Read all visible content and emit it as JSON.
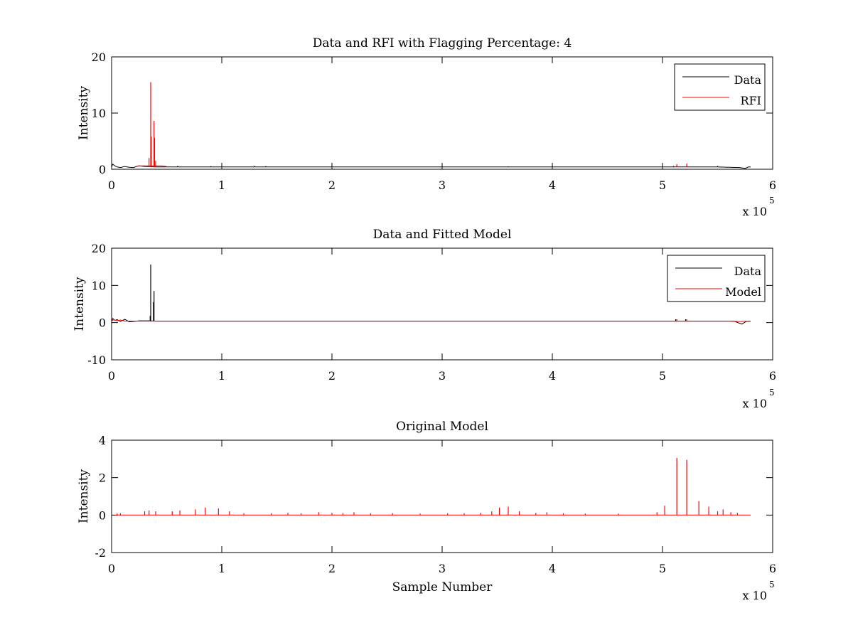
{
  "figure": {
    "background": "#ffffff"
  },
  "chart_data": [
    {
      "type": "line",
      "title": "Data and RFI with Flagging Percentage: 4",
      "xlabel": "",
      "ylabel": "Intensity",
      "xlim": [
        0,
        6
      ],
      "ylim": [
        0,
        20
      ],
      "xticks": [
        "0",
        "1",
        "2",
        "3",
        "4",
        "5",
        "6"
      ],
      "yticks": [
        "0",
        "10",
        "20"
      ],
      "x_exponent": {
        "base": "x 10",
        "power": "5"
      },
      "legend": {
        "placement": "top-right",
        "entries": [
          "Data",
          "RFI"
        ]
      },
      "series": [
        {
          "name": "Data",
          "color": "#000000",
          "baseline": 0.4,
          "x": [
            0.0,
            0.01,
            0.03,
            0.05,
            0.08,
            0.12,
            0.16,
            0.2,
            0.22,
            0.25,
            0.3,
            0.35,
            0.4,
            0.5,
            1.0,
            2.0,
            3.0,
            4.0,
            5.0,
            5.5,
            5.7,
            5.75,
            5.78,
            5.8
          ],
          "y": [
            0.4,
            0.9,
            0.6,
            0.4,
            0.3,
            0.5,
            0.35,
            0.3,
            0.45,
            0.6,
            0.5,
            0.45,
            0.42,
            0.4,
            0.4,
            0.4,
            0.4,
            0.4,
            0.4,
            0.4,
            0.3,
            0.15,
            0.4,
            0.4
          ],
          "spikes": [
            [
              0.6,
              0.6
            ],
            [
              0.9,
              0.55
            ],
            [
              1.3,
              0.6
            ],
            [
              1.4,
              0.55
            ],
            [
              3.6,
              0.5
            ],
            [
              5.1,
              0.55
            ],
            [
              5.5,
              0.6
            ]
          ]
        },
        {
          "name": "RFI",
          "color": "#ff0000",
          "baseline": 0.4,
          "x": [
            0.22,
            0.24,
            0.3,
            0.35,
            0.4,
            0.45,
            0.5
          ],
          "y": [
            0.4,
            0.6,
            0.6,
            0.6,
            0.6,
            0.6,
            0.5
          ],
          "spikes": [
            [
              0.34,
              2.0
            ],
            [
              0.355,
              15.5
            ],
            [
              0.36,
              5.8
            ],
            [
              0.385,
              8.6
            ],
            [
              0.39,
              5.6
            ],
            [
              0.4,
              1.5
            ],
            [
              5.13,
              0.9
            ],
            [
              5.22,
              1.0
            ]
          ]
        }
      ]
    },
    {
      "type": "line",
      "title": "Data and Fitted Model",
      "xlabel": "",
      "ylabel": "Intensity",
      "xlim": [
        0,
        6
      ],
      "ylim": [
        -10,
        20
      ],
      "xticks": [
        "0",
        "1",
        "2",
        "3",
        "4",
        "5",
        "6"
      ],
      "yticks": [
        "-10",
        "0",
        "10",
        "20"
      ],
      "x_exponent": {
        "base": "x 10",
        "power": "5"
      },
      "legend": {
        "placement": "top-right",
        "entries": [
          "Data",
          "Model"
        ]
      },
      "series": [
        {
          "name": "Data",
          "color": "#000000",
          "baseline": 0.4,
          "x": [
            0.0,
            0.01,
            0.03,
            0.05,
            0.08,
            0.12,
            0.16,
            0.2,
            0.25,
            0.3,
            0.34,
            0.4,
            1.0,
            3.0,
            5.0,
            5.5,
            5.65,
            5.72,
            5.76,
            5.8
          ],
          "y": [
            0.4,
            1.1,
            0.6,
            0.8,
            0.3,
            0.9,
            0.2,
            0.3,
            0.5,
            0.5,
            0.5,
            0.4,
            0.4,
            0.4,
            0.4,
            0.4,
            0.4,
            -0.4,
            0.3,
            0.4
          ],
          "spikes": [
            [
              0.35,
              1.8
            ],
            [
              0.355,
              15.6
            ],
            [
              0.38,
              5.5
            ],
            [
              0.385,
              8.5
            ],
            [
              5.12,
              0.9
            ],
            [
              5.21,
              0.9
            ]
          ]
        },
        {
          "name": "Model",
          "color": "#ff0000",
          "baseline": 0.4,
          "x": [
            0.0,
            0.02,
            0.05,
            0.08,
            0.12,
            0.2,
            0.3,
            1.0,
            3.0,
            5.0,
            5.6,
            5.7,
            5.8
          ],
          "y": [
            0.4,
            0.8,
            0.5,
            0.7,
            0.4,
            0.4,
            0.4,
            0.4,
            0.4,
            0.4,
            0.4,
            0.3,
            0.4
          ],
          "spikes": [
            [
              5.13,
              0.9
            ],
            [
              5.22,
              0.9
            ]
          ]
        }
      ]
    },
    {
      "type": "line",
      "title": "Original Model",
      "xlabel": "Sample Number",
      "ylabel": "Intensity",
      "xlim": [
        0,
        6
      ],
      "ylim": [
        -2,
        4
      ],
      "xticks": [
        "0",
        "1",
        "2",
        "3",
        "4",
        "5",
        "6"
      ],
      "yticks": [
        "-2",
        "0",
        "2",
        "4"
      ],
      "x_exponent": {
        "base": "x 10",
        "power": "5"
      },
      "legend": null,
      "series": [
        {
          "color": "#ff0000",
          "baseline": 0.0,
          "x": [
            0.03,
            5.8
          ],
          "y": [
            0.0,
            0.0
          ],
          "spikes": [
            [
              0.05,
              0.08
            ],
            [
              0.08,
              0.1
            ],
            [
              0.3,
              0.2
            ],
            [
              0.34,
              0.25
            ],
            [
              0.4,
              0.2
            ],
            [
              0.55,
              0.2
            ],
            [
              0.62,
              0.25
            ],
            [
              0.76,
              0.3
            ],
            [
              0.85,
              0.4
            ],
            [
              0.97,
              0.35
            ],
            [
              1.07,
              0.2
            ],
            [
              1.2,
              0.1
            ],
            [
              1.45,
              0.1
            ],
            [
              1.6,
              0.12
            ],
            [
              1.72,
              0.1
            ],
            [
              1.88,
              0.15
            ],
            [
              2.0,
              0.12
            ],
            [
              2.1,
              0.1
            ],
            [
              2.2,
              0.15
            ],
            [
              2.35,
              0.1
            ],
            [
              2.55,
              0.1
            ],
            [
              2.8,
              0.08
            ],
            [
              3.05,
              0.1
            ],
            [
              3.2,
              0.1
            ],
            [
              3.35,
              0.12
            ],
            [
              3.45,
              0.2
            ],
            [
              3.52,
              0.4
            ],
            [
              3.6,
              0.45
            ],
            [
              3.7,
              0.2
            ],
            [
              3.85,
              0.12
            ],
            [
              3.95,
              0.15
            ],
            [
              4.1,
              0.1
            ],
            [
              4.3,
              0.08
            ],
            [
              4.6,
              0.08
            ],
            [
              4.95,
              0.15
            ],
            [
              5.02,
              0.5
            ],
            [
              5.13,
              3.05
            ],
            [
              5.22,
              2.95
            ],
            [
              5.33,
              0.75
            ],
            [
              5.42,
              0.45
            ],
            [
              5.5,
              0.2
            ],
            [
              5.55,
              0.3
            ],
            [
              5.62,
              0.15
            ],
            [
              5.68,
              0.12
            ]
          ]
        }
      ]
    }
  ]
}
